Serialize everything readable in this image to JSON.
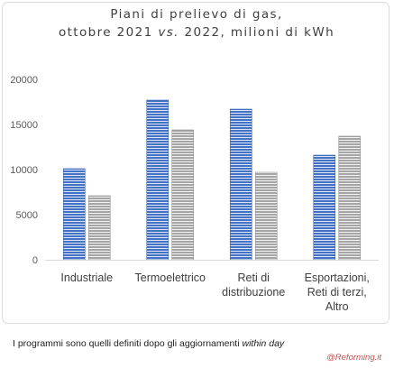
{
  "chart_data": {
    "type": "bar",
    "title": [
      "Piani di prelievo di gas,",
      "ottobre 2021 vs. 2022, milioni di kWh"
    ],
    "title_parts": {
      "line1": "Piani di prelievo di gas,",
      "line2_a": "ottobre 2021 ",
      "line2_b": "vs.",
      "line2_c": " 2022, milioni di kWh"
    },
    "categories": [
      [
        "Industriale"
      ],
      [
        "Termoelettrico"
      ],
      [
        "Reti di",
        "distribuzione"
      ],
      [
        "Esportazioni,",
        "Reti di terzi,",
        "Altro"
      ]
    ],
    "series": [
      {
        "name": "",
        "color": "#4472c4",
        "pattern": "horizontal-stripes",
        "values": [
          10100,
          17700,
          16700,
          11600
        ]
      },
      {
        "name": "",
        "color": "#a5a5a5",
        "pattern": "horizontal-stripes",
        "values": [
          7100,
          14400,
          9700,
          13700
        ]
      }
    ],
    "ylim": [
      0,
      20000
    ],
    "yticks": [
      "0",
      "5000",
      "10000",
      "15000",
      "20000"
    ],
    "grid": false,
    "xlabel": "",
    "ylabel": ""
  },
  "footnote": {
    "text": "I programmi sono quelli definiti dopo gli aggiornamenti ",
    "emphasis": "within day"
  },
  "credit": "@Reforming.it"
}
